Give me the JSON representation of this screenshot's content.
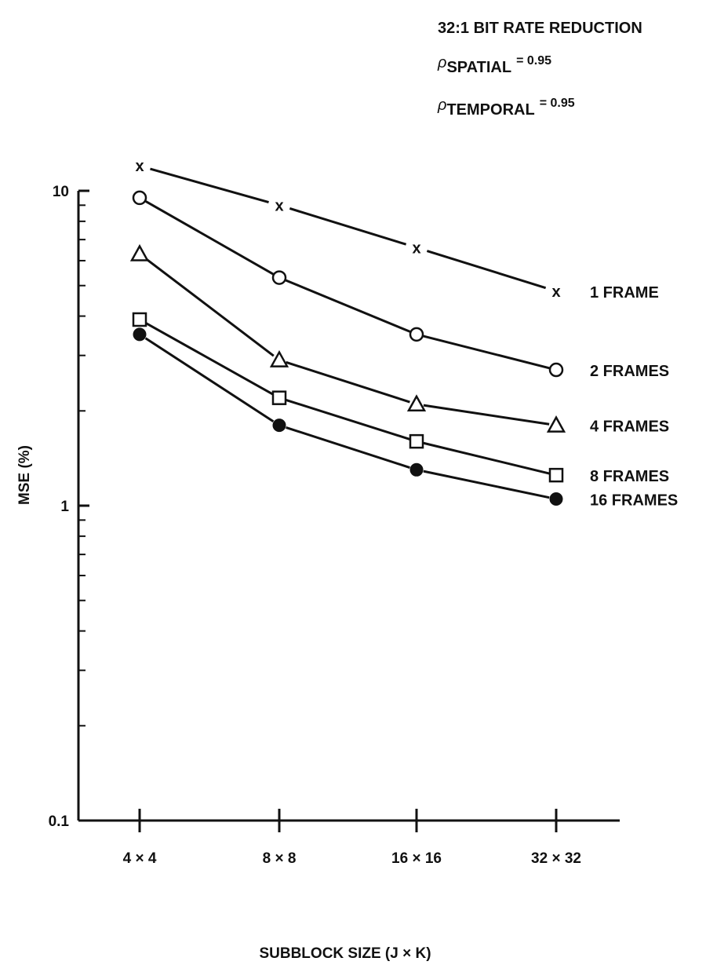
{
  "chart_data": {
    "type": "line",
    "annotations": {
      "line1": "32:1 BIT RATE REDUCTION",
      "rho_symbol": "ρ",
      "line2_sub": "SPATIAL",
      "line2_eq": "= 0.95",
      "line3_sub": "TEMPORAL",
      "line3_eq": "= 0.95"
    },
    "xlabel": "SUBBLOCK SIZE (J × K)",
    "ylabel": "MSE (%)",
    "categories": [
      "4 × 4",
      "8 × 8",
      "16 × 16",
      "32 × 32"
    ],
    "y_scale": "log",
    "ylim": [
      0.1,
      10
    ],
    "y_tick_labels": [
      "0.1",
      "1",
      "10"
    ],
    "grid": false,
    "series": [
      {
        "name": "1 FRAME",
        "marker": "x",
        "values": [
          12.0,
          9.0,
          6.6,
          4.8
        ]
      },
      {
        "name": "2 FRAMES",
        "marker": "open-circle",
        "values": [
          9.5,
          5.3,
          3.5,
          2.7
        ]
      },
      {
        "name": "4 FRAMES",
        "marker": "open-triangle",
        "values": [
          6.3,
          2.9,
          2.1,
          1.8
        ]
      },
      {
        "name": "8 FRAMES",
        "marker": "open-square",
        "values": [
          3.9,
          2.2,
          1.6,
          1.25
        ]
      },
      {
        "name": "16 FRAMES",
        "marker": "filled-circle",
        "values": [
          3.5,
          1.8,
          1.3,
          1.05
        ]
      }
    ]
  }
}
